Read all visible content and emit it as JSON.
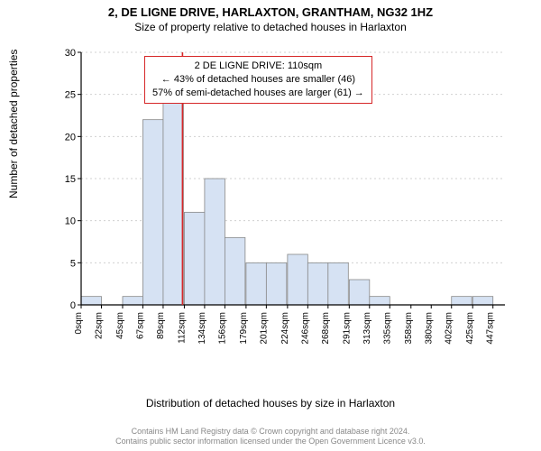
{
  "title": "2, DE LIGNE DRIVE, HARLAXTON, GRANTHAM, NG32 1HZ",
  "subtitle": "Size of property relative to detached houses in Harlaxton",
  "y_axis_label": "Number of detached properties",
  "x_axis_label": "Distribution of detached houses by size in Harlaxton",
  "footer_line1": "Contains HM Land Registry data © Crown copyright and database right 2024.",
  "footer_line2": "Contains public sector information licensed under the Open Government Licence v3.0.",
  "chart": {
    "type": "histogram",
    "bar_fill": "#d6e2f3",
    "bar_stroke": "#888888",
    "axis_color": "#000000",
    "grid_color": "#d0d0d0",
    "marker_line_color": "#d62728",
    "marker_x_value": 110,
    "background": "#ffffff",
    "ylim": [
      0,
      30
    ],
    "ytick_step": 5,
    "x_tick_labels": [
      "0sqm",
      "22sqm",
      "45sqm",
      "67sqm",
      "89sqm",
      "112sqm",
      "134sqm",
      "156sqm",
      "179sqm",
      "201sqm",
      "224sqm",
      "246sqm",
      "268sqm",
      "291sqm",
      "313sqm",
      "335sqm",
      "358sqm",
      "380sqm",
      "402sqm",
      "425sqm",
      "447sqm"
    ],
    "x_tick_values": [
      0,
      22,
      45,
      67,
      89,
      112,
      134,
      156,
      179,
      201,
      224,
      246,
      268,
      291,
      313,
      335,
      358,
      380,
      402,
      425,
      447
    ],
    "x_range": [
      0,
      460
    ],
    "bar_width_value": 22,
    "bars": [
      {
        "x": 0,
        "h": 1
      },
      {
        "x": 45,
        "h": 1
      },
      {
        "x": 67,
        "h": 22
      },
      {
        "x": 89,
        "h": 24
      },
      {
        "x": 112,
        "h": 11
      },
      {
        "x": 134,
        "h": 15
      },
      {
        "x": 156,
        "h": 8
      },
      {
        "x": 179,
        "h": 5
      },
      {
        "x": 201,
        "h": 5
      },
      {
        "x": 224,
        "h": 6
      },
      {
        "x": 246,
        "h": 5
      },
      {
        "x": 268,
        "h": 5
      },
      {
        "x": 291,
        "h": 3
      },
      {
        "x": 313,
        "h": 1
      },
      {
        "x": 402,
        "h": 1
      },
      {
        "x": 425,
        "h": 1
      }
    ]
  },
  "annotation": {
    "line1": "2 DE LIGNE DRIVE: 110sqm",
    "line2": "← 43% of detached houses are smaller (46)",
    "line3": "57% of semi-detached houses are larger (61) →",
    "border_color": "#d62728",
    "font_size": 11
  }
}
